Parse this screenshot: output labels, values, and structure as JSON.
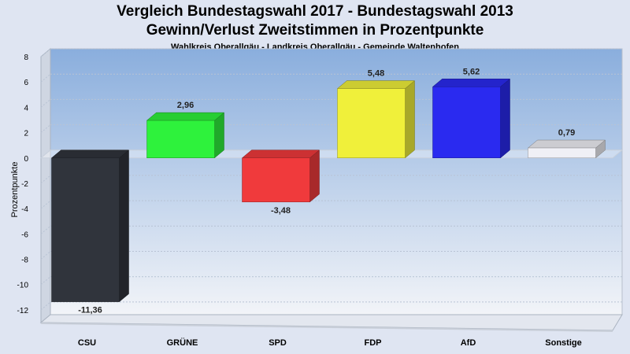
{
  "chart_data": {
    "type": "bar",
    "title": "Vergleich Bundestagswahl 2017 - Bundestagswahl 2013",
    "subtitle": "Gewinn/Verlust Zweitstimmen in Prozentpunkte",
    "caption": "Wahlkreis Oberallgäu - Landkreis Oberallgäu - Gemeinde Waltenhofen",
    "xlabel": "",
    "ylabel": "Prozentpunkte",
    "ylim": [
      -13,
      8
    ],
    "yticks": [
      8,
      6,
      4,
      2,
      0,
      -2,
      -4,
      -6,
      -8,
      -10,
      -12
    ],
    "grid": true,
    "categories": [
      "CSU",
      "GRÜNE",
      "SPD",
      "FDP",
      "AfD",
      "Sonstige"
    ],
    "values": [
      -11.36,
      2.96,
      -3.48,
      5.48,
      5.62,
      0.79
    ],
    "value_labels": [
      "-11,36",
      "2,96",
      "-3,48",
      "5,48",
      "5,62",
      "0,79"
    ],
    "colors": [
      "#30343c",
      "#2ef23c",
      "#f03a3c",
      "#f0f03a",
      "#2a2af0",
      "#f0f0f6"
    ]
  }
}
